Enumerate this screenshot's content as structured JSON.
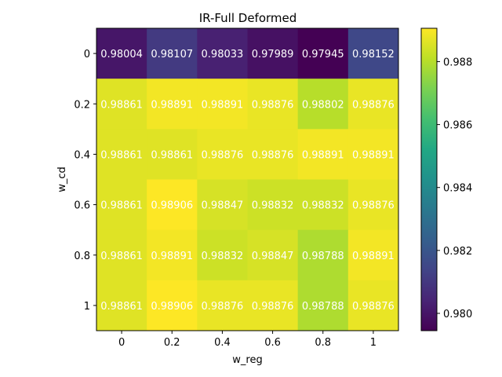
{
  "chart_data": {
    "type": "heatmap",
    "title": "IR-Full Deformed",
    "xlabel": "w_reg",
    "ylabel": "w_cd",
    "x_categories": [
      "0",
      "0.2",
      "0.4",
      "0.6",
      "0.8",
      "1"
    ],
    "y_categories": [
      "0",
      "0.2",
      "0.4",
      "0.6",
      "0.8",
      "1"
    ],
    "values": [
      [
        0.98004,
        0.98107,
        0.98033,
        0.97989,
        0.97945,
        0.98152
      ],
      [
        0.98861,
        0.98891,
        0.98891,
        0.98876,
        0.98802,
        0.98876
      ],
      [
        0.98861,
        0.98861,
        0.98876,
        0.98876,
        0.98891,
        0.98891
      ],
      [
        0.98861,
        0.98906,
        0.98847,
        0.98832,
        0.98832,
        0.98876
      ],
      [
        0.98861,
        0.98891,
        0.98832,
        0.98847,
        0.98788,
        0.98891
      ],
      [
        0.98861,
        0.98906,
        0.98876,
        0.98876,
        0.98788,
        0.98876
      ]
    ],
    "cell_labels": [
      [
        "0.98004",
        "0.98107",
        "0.98033",
        "0.97989",
        "0.97945",
        "0.98152"
      ],
      [
        "0.98861",
        "0.98891",
        "0.98891",
        "0.98876",
        "0.98802",
        "0.98876"
      ],
      [
        "0.98861",
        "0.98861",
        "0.98876",
        "0.98876",
        "0.98891",
        "0.98891"
      ],
      [
        "0.98861",
        "0.98906",
        "0.98847",
        "0.98832",
        "0.98832",
        "0.98876"
      ],
      [
        "0.98861",
        "0.98891",
        "0.98832",
        "0.98847",
        "0.98788",
        "0.98891"
      ],
      [
        "0.98861",
        "0.98906",
        "0.98876",
        "0.98876",
        "0.98788",
        "0.98876"
      ]
    ],
    "colormap": "viridis",
    "color_range": [
      0.97945,
      0.98906
    ],
    "colorbar_ticks": [
      0.98,
      0.982,
      0.984,
      0.986,
      0.988
    ],
    "colorbar_tick_labels": [
      "0.980",
      "0.982",
      "0.984",
      "0.986",
      "0.988"
    ],
    "grid": false
  }
}
